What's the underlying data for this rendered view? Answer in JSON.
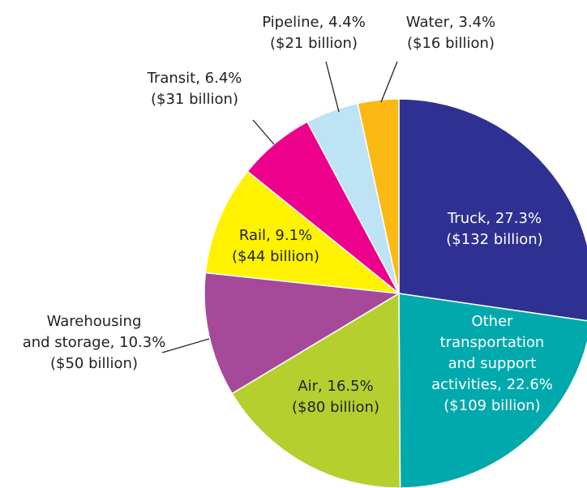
{
  "chart_data": {
    "type": "pie",
    "values": [
      27.3,
      22.6,
      16.5,
      10.3,
      9.1,
      6.4,
      4.4,
      3.4
    ],
    "value_labels": [
      [
        "Truck, 27.3%",
        "($132 billion)"
      ],
      [
        "Other",
        "transportation",
        "and support",
        "activities, 22.6%",
        "($109 billion)"
      ],
      [
        "Air, 16.5%",
        "($80 billion)"
      ],
      [
        "Warehousing",
        "and storage, 10.3%",
        "($50 billion)"
      ],
      [
        "Rail, 9.1%",
        "($44 billion)"
      ],
      [
        "Transit, 6.4%",
        "($31 billion)"
      ],
      [
        "Pipeline, 4.4%",
        "($21 billion)"
      ],
      [
        "Water, 3.4%",
        "($16 billion)"
      ]
    ],
    "colors": [
      "#2e3192",
      "#00a9ac",
      "#b5cf2f",
      "#a6499b",
      "#fff200",
      "#ec008c",
      "#bde3f5",
      "#fdb913"
    ]
  }
}
